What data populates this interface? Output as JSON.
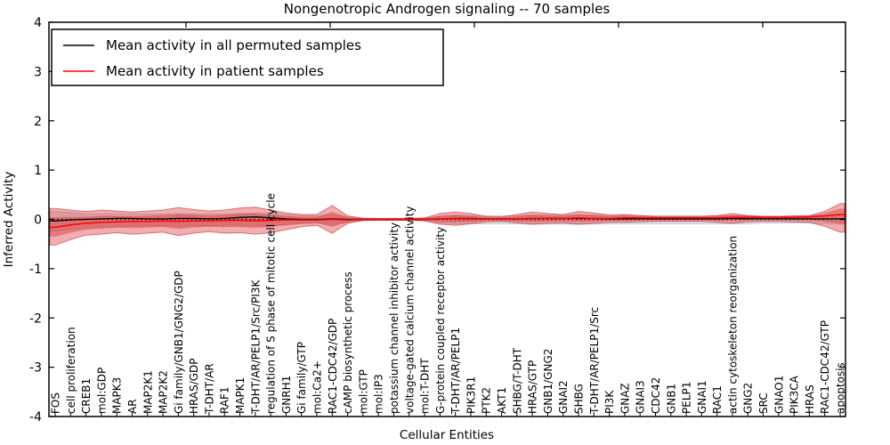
{
  "figure": {
    "background": "#ffffff"
  },
  "chart_data": {
    "type": "line",
    "title": "Nongenotropic Androgen signaling -- 70 samples",
    "xlabel": "Cellular Entities",
    "ylabel": "Inferred Activity",
    "ylim": [
      -4,
      4
    ],
    "yticks": [
      -4,
      -3,
      -2,
      -1,
      0,
      1,
      2,
      3,
      4
    ],
    "grid": false,
    "legend_position": "upper left",
    "zero_line": {
      "y": 0,
      "style": "dotted",
      "color": "#000000"
    },
    "categories": [
      "FOS",
      "cell proliferation",
      "CREB1",
      "mol:GDP",
      "MAPK3",
      "AR",
      "MAP2K1",
      "MAP2K2",
      "Gi family/GNB1/GNG2/GDP",
      "HRAS/GDP",
      "T-DHT/AR",
      "RAF1",
      "MAPK1",
      "T-DHT/AR/PELP1/Src/PI3K",
      "regulation of S phase of mitotic cell cycle",
      "GNRH1",
      "Gi family/GTP",
      "mol:Ca2+",
      "RAC1-CDC42/GDP",
      "cAMP biosynthetic process",
      "mol:GTP",
      "mol:IP3",
      "potassium channel inhibitor activity",
      "voltage-gated calcium channel activity",
      "mol:T-DHT",
      "G-protein coupled receptor activity",
      "T-DHT/AR/PELP1",
      "PIK3R1",
      "PTK2",
      "AKT1",
      "SHBG/T-DHT",
      "HRAS/GTP",
      "GNB1/GNG2",
      "GNAI2",
      "SHBG",
      "T-DHT/AR/PELP1/Src",
      "PI3K",
      "GNAZ",
      "GNAI3",
      "CDC42",
      "GNB1",
      "PELP1",
      "GNAI1",
      "RAC1",
      "actin cytoskeleton reorganization",
      "GNG2",
      "SRC",
      "GNAO1",
      "PIK3CA",
      "HRAS",
      "RAC1-CDC42/GTP",
      "apoptosis"
    ],
    "series": [
      {
        "name": "Mean activity in all permuted samples",
        "color": "#000000",
        "values": [
          -0.03,
          -0.01,
          0,
          0.01,
          0.02,
          0.02,
          0.01,
          0.01,
          0.02,
          0.02,
          0.01,
          0.02,
          0.04,
          0.05,
          0.03,
          0.01,
          0,
          0,
          0.01,
          0,
          0,
          0,
          0,
          0,
          0,
          0.01,
          0.02,
          0.02,
          0.01,
          0.01,
          0.01,
          0.02,
          0.02,
          0.02,
          0.02,
          0.02,
          0.01,
          0.01,
          0.01,
          0.01,
          0.01,
          0.01,
          0.01,
          0.01,
          0.02,
          0.01,
          0.01,
          0.01,
          0.01,
          0.01,
          0.01,
          0.01
        ]
      },
      {
        "name": "Mean activity in patient samples",
        "color": "#ff0000",
        "values": [
          -0.16,
          -0.11,
          -0.08,
          -0.06,
          -0.05,
          -0.04,
          -0.04,
          -0.03,
          -0.04,
          -0.03,
          -0.03,
          -0.02,
          -0.02,
          -0.03,
          -0.02,
          -0.01,
          -0.01,
          -0.01,
          0,
          -0.01,
          0,
          0,
          0,
          0,
          0,
          0.01,
          0.02,
          0.01,
          0.01,
          0.01,
          0.01,
          0.02,
          0.02,
          0.02,
          0.03,
          0.02,
          0.02,
          0.03,
          0.03,
          0.03,
          0.03,
          0.03,
          0.03,
          0.03,
          0.04,
          0.04,
          0.04,
          0.04,
          0.04,
          0.05,
          0.07,
          0.1
        ]
      }
    ],
    "bands": [
      {
        "name": "permuted samples spread",
        "fill": "rgba(110,120,145,0.22)",
        "edge": "rgba(110,120,145,0.35)",
        "upper": [
          0.16,
          0.14,
          0.12,
          0.12,
          0.12,
          0.11,
          0.11,
          0.11,
          0.12,
          0.11,
          0.11,
          0.11,
          0.12,
          0.13,
          0.12,
          0.1,
          0.08,
          0.07,
          0.09,
          0.06,
          0.03,
          0.02,
          0.02,
          0.02,
          0.03,
          0.06,
          0.08,
          0.08,
          0.08,
          0.08,
          0.08,
          0.09,
          0.09,
          0.09,
          0.09,
          0.09,
          0.08,
          0.08,
          0.08,
          0.08,
          0.08,
          0.08,
          0.08,
          0.08,
          0.08,
          0.08,
          0.07,
          0.07,
          0.07,
          0.07,
          0.08,
          0.09
        ],
        "lower": [
          -0.24,
          -0.2,
          -0.17,
          -0.15,
          -0.14,
          -0.13,
          -0.13,
          -0.13,
          -0.14,
          -0.13,
          -0.13,
          -0.12,
          -0.12,
          -0.13,
          -0.13,
          -0.11,
          -0.09,
          -0.08,
          -0.1,
          -0.07,
          -0.03,
          -0.02,
          -0.02,
          -0.02,
          -0.03,
          -0.07,
          -0.09,
          -0.09,
          -0.09,
          -0.09,
          -0.09,
          -0.1,
          -0.1,
          -0.1,
          -0.1,
          -0.1,
          -0.09,
          -0.09,
          -0.09,
          -0.09,
          -0.09,
          -0.09,
          -0.09,
          -0.09,
          -0.09,
          -0.09,
          -0.08,
          -0.08,
          -0.08,
          -0.08,
          -0.09,
          -0.1
        ]
      },
      {
        "name": "patient samples spread",
        "fill": "rgba(217,42,42,0.38)",
        "edge": "rgba(190,35,35,0.55)",
        "upper": [
          0.22,
          0.19,
          0.16,
          0.19,
          0.17,
          0.15,
          0.17,
          0.19,
          0.24,
          0.2,
          0.17,
          0.19,
          0.23,
          0.25,
          0.19,
          0.13,
          0.1,
          0.1,
          0.28,
          0.07,
          0.02,
          0.02,
          0.02,
          0.02,
          0.03,
          0.12,
          0.15,
          0.12,
          0.06,
          0.05,
          0.1,
          0.15,
          0.12,
          0.1,
          0.16,
          0.13,
          0.09,
          0.1,
          0.08,
          0.06,
          0.06,
          0.06,
          0.06,
          0.08,
          0.12,
          0.08,
          0.06,
          0.06,
          0.07,
          0.08,
          0.16,
          0.32
        ],
        "lower": [
          -0.52,
          -0.41,
          -0.32,
          -0.3,
          -0.27,
          -0.3,
          -0.28,
          -0.26,
          -0.33,
          -0.28,
          -0.25,
          -0.28,
          -0.27,
          -0.3,
          -0.27,
          -0.21,
          -0.15,
          -0.12,
          -0.28,
          -0.08,
          -0.02,
          -0.02,
          -0.02,
          -0.02,
          -0.03,
          -0.1,
          -0.12,
          -0.09,
          -0.05,
          -0.04,
          -0.07,
          -0.1,
          -0.08,
          -0.07,
          -0.1,
          -0.08,
          -0.06,
          -0.06,
          -0.05,
          -0.04,
          -0.04,
          -0.04,
          -0.04,
          -0.06,
          -0.08,
          -0.05,
          -0.04,
          -0.04,
          -0.05,
          -0.06,
          -0.14,
          -0.26
        ]
      }
    ]
  }
}
